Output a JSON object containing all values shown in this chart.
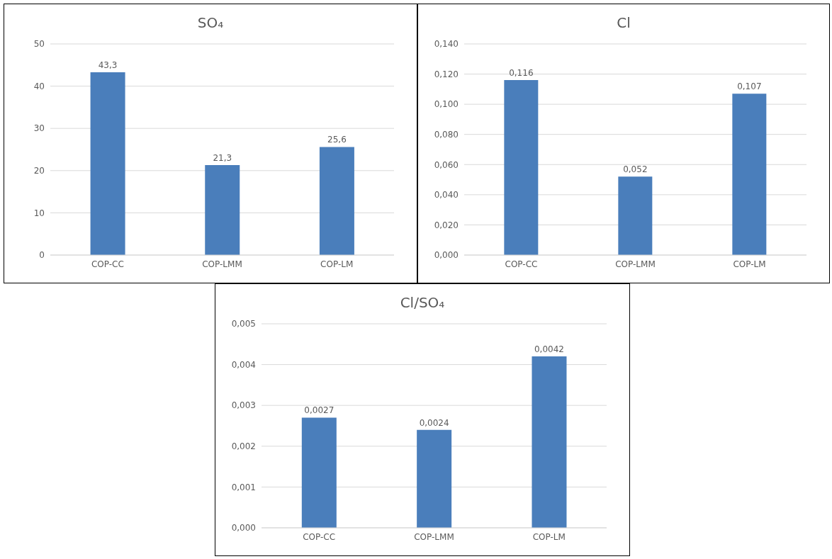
{
  "chart_data": [
    {
      "type": "bar",
      "title": "SO₄",
      "categories": [
        "COP-CC",
        "COP-LMM",
        "COP-LM"
      ],
      "values": [
        43.3,
        21.3,
        25.6
      ],
      "color": "#4a7ebb",
      "value_labels": [
        "43,3",
        "21,3",
        "25,6"
      ],
      "ylim": [
        0,
        50
      ],
      "yticks": [
        0,
        10,
        20,
        30,
        40,
        50
      ],
      "grid": "y"
    },
    {
      "type": "bar",
      "title": "Cl",
      "categories": [
        "COP-CC",
        "COP-LMM",
        "COP-LM"
      ],
      "values": [
        0.116,
        0.052,
        0.107
      ],
      "color": "#4a7ebb",
      "value_labels": [
        "0,116",
        "0,052",
        "0,107"
      ],
      "ylim": [
        0,
        0.14
      ],
      "yticks": [
        {
          "value": 0,
          "label": "0,000"
        },
        {
          "value": 0.02,
          "label": "0,020"
        },
        {
          "value": 0.04,
          "label": "0,040"
        },
        {
          "value": 0.06,
          "label": "0,060"
        },
        {
          "value": 0.08,
          "label": "0,080"
        },
        {
          "value": 0.1,
          "label": "0,100"
        },
        {
          "value": 0.12,
          "label": "0,120"
        },
        {
          "value": 0.14,
          "label": "0,140"
        }
      ],
      "grid": "y"
    },
    {
      "type": "bar",
      "title": "Cl/SO₄",
      "categories": [
        "COP-CC",
        "COP-LMM",
        "COP-LM"
      ],
      "values": [
        0.0027,
        0.0024,
        0.0042
      ],
      "color": "#4a7ebb",
      "value_labels": [
        "0,0027",
        "0,0024",
        "0,0042"
      ],
      "ylim": [
        0,
        0.005
      ],
      "yticks": [
        {
          "value": 0,
          "label": "0,000"
        },
        {
          "value": 0.001,
          "label": "0,001"
        },
        {
          "value": 0.002,
          "label": "0,002"
        },
        {
          "value": 0.003,
          "label": "0,003"
        },
        {
          "value": 0.004,
          "label": "0,004"
        },
        {
          "value": 0.005,
          "label": "0,005"
        }
      ],
      "grid": "y"
    }
  ]
}
